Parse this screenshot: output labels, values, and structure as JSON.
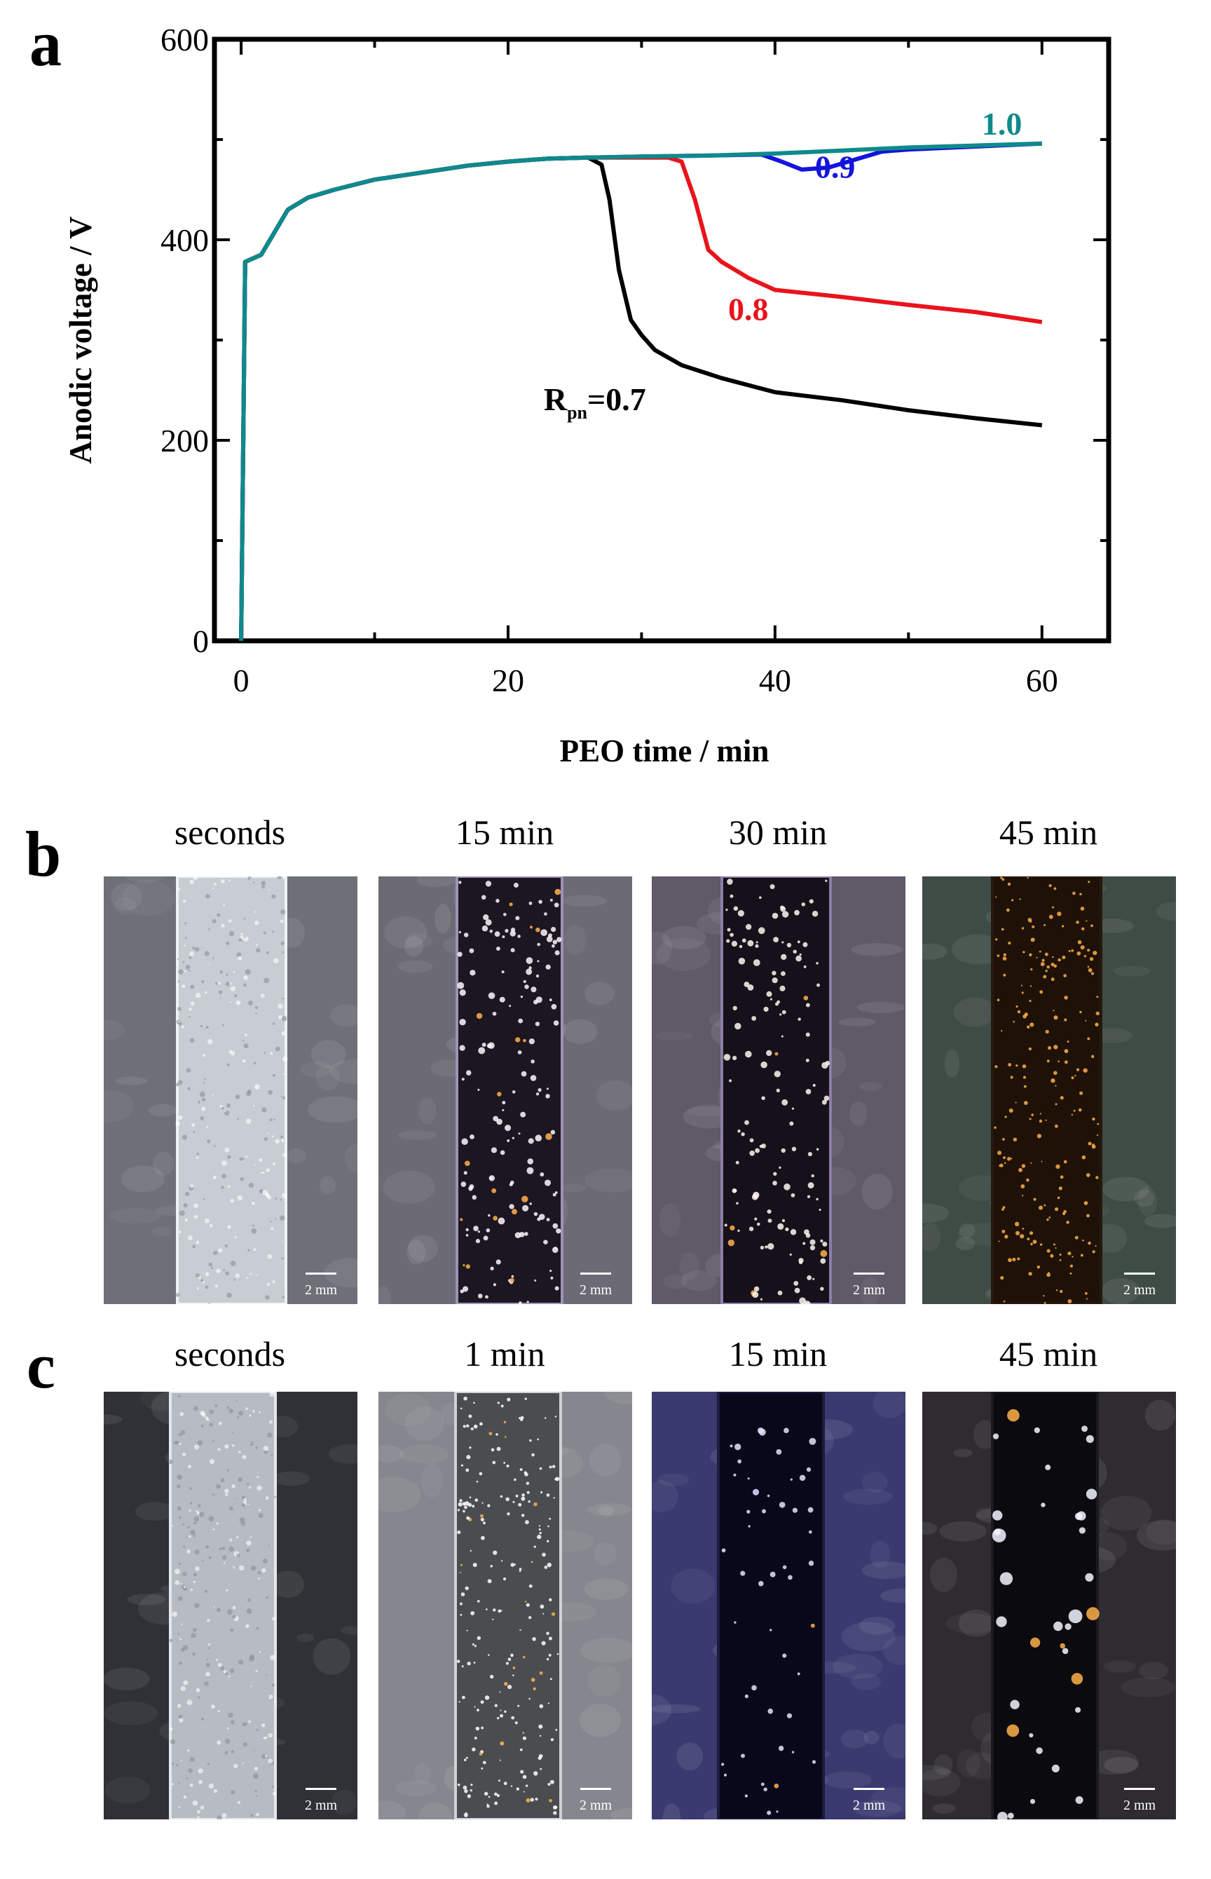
{
  "panels": {
    "a": "a",
    "b": "b",
    "c": "c"
  },
  "chart_data": {
    "type": "line",
    "xlabel": "PEO time / min",
    "ylabel": "Anodic voltage / V",
    "xlim": [
      -2,
      65
    ],
    "ylim": [
      0,
      600
    ],
    "xticks": [
      0,
      20,
      40,
      60
    ],
    "yticks": [
      0,
      200,
      400,
      600
    ],
    "series": [
      {
        "name": "0.7",
        "label": "=0.7",
        "label_prefix": "R",
        "label_sub": "pn",
        "color": "#000000",
        "x": [
          0,
          0.3,
          1.5,
          3.5,
          5,
          7,
          10,
          14,
          17,
          20,
          23,
          26,
          27,
          27.6,
          28.3,
          29.2,
          30,
          31,
          33,
          36,
          40,
          45,
          50,
          55,
          60
        ],
        "y": [
          0,
          378,
          385,
          430,
          442,
          450,
          460,
          468,
          474,
          478,
          481,
          482,
          475,
          440,
          370,
          320,
          305,
          290,
          275,
          262,
          248,
          240,
          230,
          222,
          215
        ]
      },
      {
        "name": "0.8",
        "label": "0.8",
        "color": "#e8141c",
        "x": [
          0,
          0.3,
          1.5,
          3.5,
          5,
          7,
          10,
          14,
          17,
          20,
          23,
          26,
          29,
          32,
          33,
          34,
          35,
          36,
          38,
          40,
          45,
          50,
          55,
          60
        ],
        "y": [
          0,
          378,
          385,
          430,
          442,
          450,
          460,
          468,
          474,
          478,
          481,
          482,
          482,
          482,
          478,
          440,
          390,
          378,
          362,
          350,
          343,
          335,
          328,
          318
        ]
      },
      {
        "name": "0.9",
        "label": "0.9",
        "color": "#1414dc",
        "x": [
          0,
          0.3,
          1.5,
          3.5,
          5,
          7,
          10,
          14,
          17,
          20,
          23,
          26,
          30,
          35,
          39,
          40.5,
          42,
          44,
          46,
          48,
          50,
          55,
          60
        ],
        "y": [
          0,
          378,
          385,
          430,
          442,
          450,
          460,
          468,
          474,
          478,
          481,
          482,
          483,
          484,
          485,
          478,
          470,
          472,
          480,
          488,
          490,
          493,
          496
        ]
      },
      {
        "name": "1.0",
        "label": "1.0",
        "color": "#0f8a8a",
        "x": [
          0,
          0.3,
          1.5,
          3.5,
          5,
          7,
          10,
          14,
          17,
          20,
          23,
          26,
          30,
          35,
          40,
          45,
          50,
          55,
          60
        ],
        "y": [
          0,
          378,
          385,
          430,
          442,
          450,
          460,
          468,
          474,
          478,
          481,
          482,
          483,
          484,
          486,
          489,
          492,
          494,
          496
        ]
      }
    ]
  },
  "row_b": [
    {
      "label": "seconds",
      "scale": "2 mm"
    },
    {
      "label": "15 min",
      "scale": "2 mm"
    },
    {
      "label": "30 min",
      "scale": "2 mm"
    },
    {
      "label": "45 min",
      "scale": "2 mm"
    }
  ],
  "row_c": [
    {
      "label": "seconds",
      "scale": "2 mm"
    },
    {
      "label": "1 min",
      "scale": "2 mm"
    },
    {
      "label": "15 min",
      "scale": "2 mm"
    },
    {
      "label": "45 min",
      "scale": "2 mm"
    }
  ]
}
